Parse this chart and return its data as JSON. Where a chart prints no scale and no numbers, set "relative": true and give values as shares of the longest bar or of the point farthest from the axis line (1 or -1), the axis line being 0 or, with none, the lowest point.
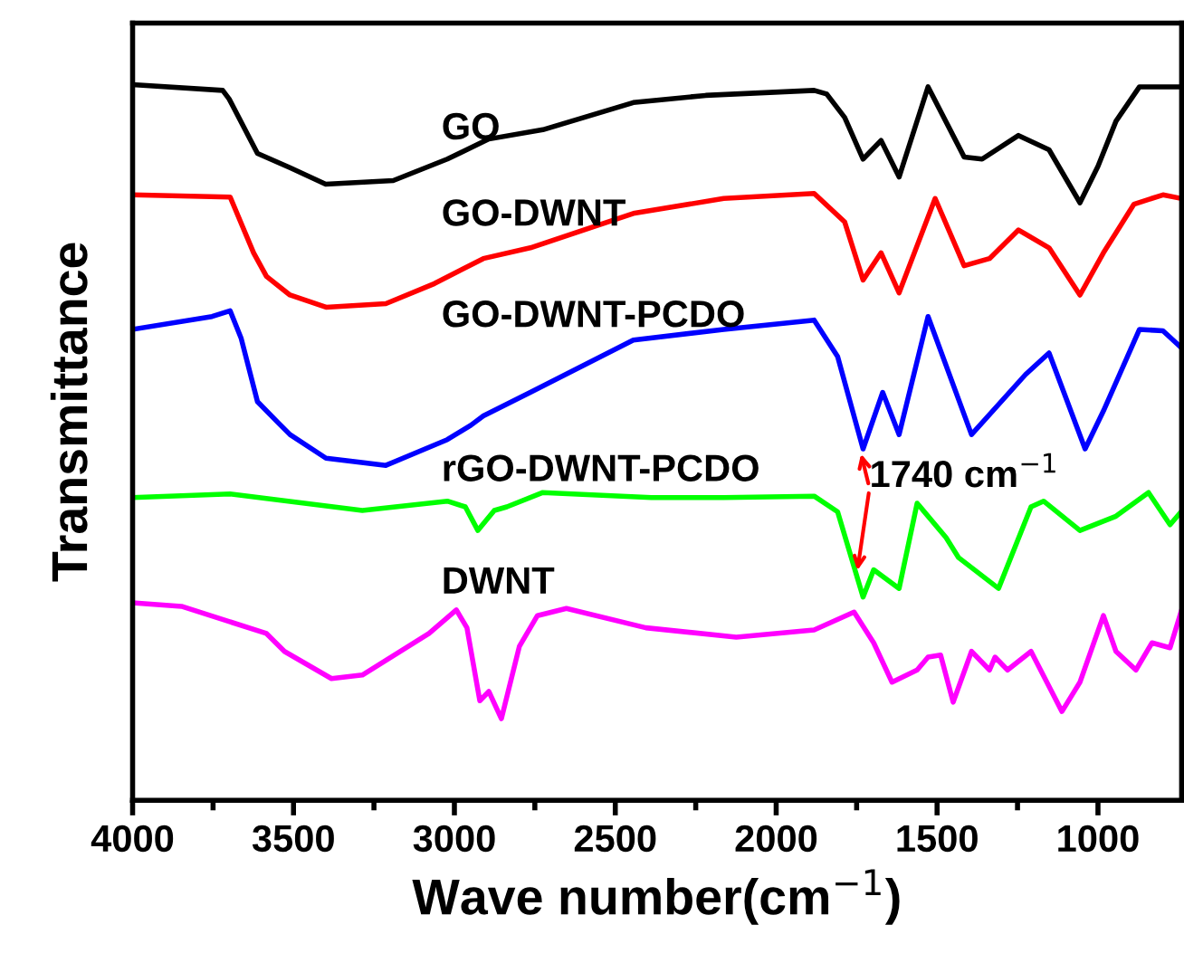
{
  "chart_data": {
    "type": "line",
    "relative": true,
    "xlabel": "Wave number(cm$^{−1}$)",
    "ylabel": "Transmittance",
    "xlim": [
      4000,
      740
    ],
    "xticks": [
      4000,
      3500,
      3000,
      2500,
      2000,
      1500,
      1000
    ],
    "tick_labels": "x",
    "grid": false,
    "legend": false,
    "marker": "none",
    "line_style": "solid",
    "annotations": [
      {
        "text": "1740 cm$^{−1}$",
        "x": 1740,
        "y": 0.491
      }
    ],
    "series": [
      {
        "name": "GO",
        "color": "#000000",
        "x": [
          4000,
          3720,
          3700,
          3612,
          3511,
          3400,
          3190,
          3022,
          2893,
          2725,
          2444,
          2219,
          1882,
          1843,
          1787,
          1730,
          1674,
          1618,
          1528,
          1416,
          1360,
          1247,
          1152,
          1056,
          1000,
          944,
          871,
          742
        ],
        "values": [
          1.0,
          0.992,
          0.98,
          0.904,
          0.884,
          0.861,
          0.866,
          0.896,
          0.924,
          0.937,
          0.975,
          0.985,
          0.992,
          0.987,
          0.954,
          0.896,
          0.922,
          0.871,
          0.997,
          0.899,
          0.896,
          0.929,
          0.909,
          0.835,
          0.886,
          0.949,
          0.997,
          0.997
        ]
      },
      {
        "name": "GO-DWNT",
        "color": "#ff0000",
        "x": [
          4000,
          3697,
          3624,
          3584,
          3511,
          3399,
          3213,
          3062,
          2910,
          2764,
          2444,
          2163,
          1882,
          1787,
          1730,
          1674,
          1618,
          1506,
          1416,
          1337,
          1247,
          1152,
          1056,
          983,
          888,
          798,
          742
        ],
        "values": [
          0.846,
          0.843,
          0.765,
          0.732,
          0.706,
          0.689,
          0.694,
          0.722,
          0.757,
          0.772,
          0.82,
          0.841,
          0.848,
          0.808,
          0.727,
          0.765,
          0.709,
          0.841,
          0.747,
          0.757,
          0.797,
          0.772,
          0.706,
          0.765,
          0.833,
          0.846,
          0.841
        ]
      },
      {
        "name": "GO-DWNT-PCDO",
        "color": "#0000ff",
        "x": [
          4000,
          3753,
          3697,
          3663,
          3612,
          3551,
          3511,
          3399,
          3213,
          3022,
          2949,
          2910,
          2764,
          2444,
          2163,
          1882,
          1809,
          1730,
          1669,
          1618,
          1528,
          1393,
          1225,
          1152,
          1040,
          983,
          871,
          798,
          742
        ],
        "values": [
          0.658,
          0.676,
          0.684,
          0.646,
          0.557,
          0.529,
          0.511,
          0.478,
          0.468,
          0.504,
          0.524,
          0.537,
          0.57,
          0.643,
          0.658,
          0.671,
          0.62,
          0.491,
          0.57,
          0.511,
          0.676,
          0.511,
          0.595,
          0.625,
          0.491,
          0.544,
          0.658,
          0.656,
          0.633
        ]
      },
      {
        "name": "rGO-DWNT-PCDO",
        "color": "#00ff00",
        "x": [
          4000,
          3697,
          3286,
          3022,
          2966,
          2927,
          2876,
          2837,
          2725,
          2388,
          2163,
          1882,
          1809,
          1730,
          1697,
          1618,
          1562,
          1472,
          1433,
          1309,
          1208,
          1169,
          1056,
          944,
          843,
          776,
          742
        ],
        "values": [
          0.423,
          0.428,
          0.405,
          0.418,
          0.41,
          0.377,
          0.405,
          0.41,
          0.43,
          0.423,
          0.423,
          0.425,
          0.403,
          0.284,
          0.322,
          0.296,
          0.415,
          0.367,
          0.339,
          0.296,
          0.41,
          0.418,
          0.377,
          0.397,
          0.43,
          0.385,
          0.403
        ]
      },
      {
        "name": "DWNT",
        "color": "#ff00ff",
        "x": [
          4000,
          3848,
          3584,
          3528,
          3382,
          3286,
          3079,
          2994,
          2961,
          2921,
          2893,
          2854,
          2798,
          2742,
          2652,
          2405,
          2124,
          1882,
          1758,
          1697,
          1640,
          1562,
          1528,
          1489,
          1450,
          1393,
          1337,
          1320,
          1281,
          1208,
          1112,
          1056,
          983,
          944,
          882,
          832,
          776,
          742
        ],
        "values": [
          0.276,
          0.271,
          0.233,
          0.208,
          0.17,
          0.175,
          0.233,
          0.266,
          0.241,
          0.139,
          0.152,
          0.114,
          0.215,
          0.258,
          0.268,
          0.241,
          0.228,
          0.238,
          0.263,
          0.22,
          0.165,
          0.182,
          0.2,
          0.203,
          0.137,
          0.208,
          0.182,
          0.2,
          0.182,
          0.208,
          0.124,
          0.165,
          0.258,
          0.208,
          0.182,
          0.22,
          0.213,
          0.263
        ]
      }
    ]
  }
}
